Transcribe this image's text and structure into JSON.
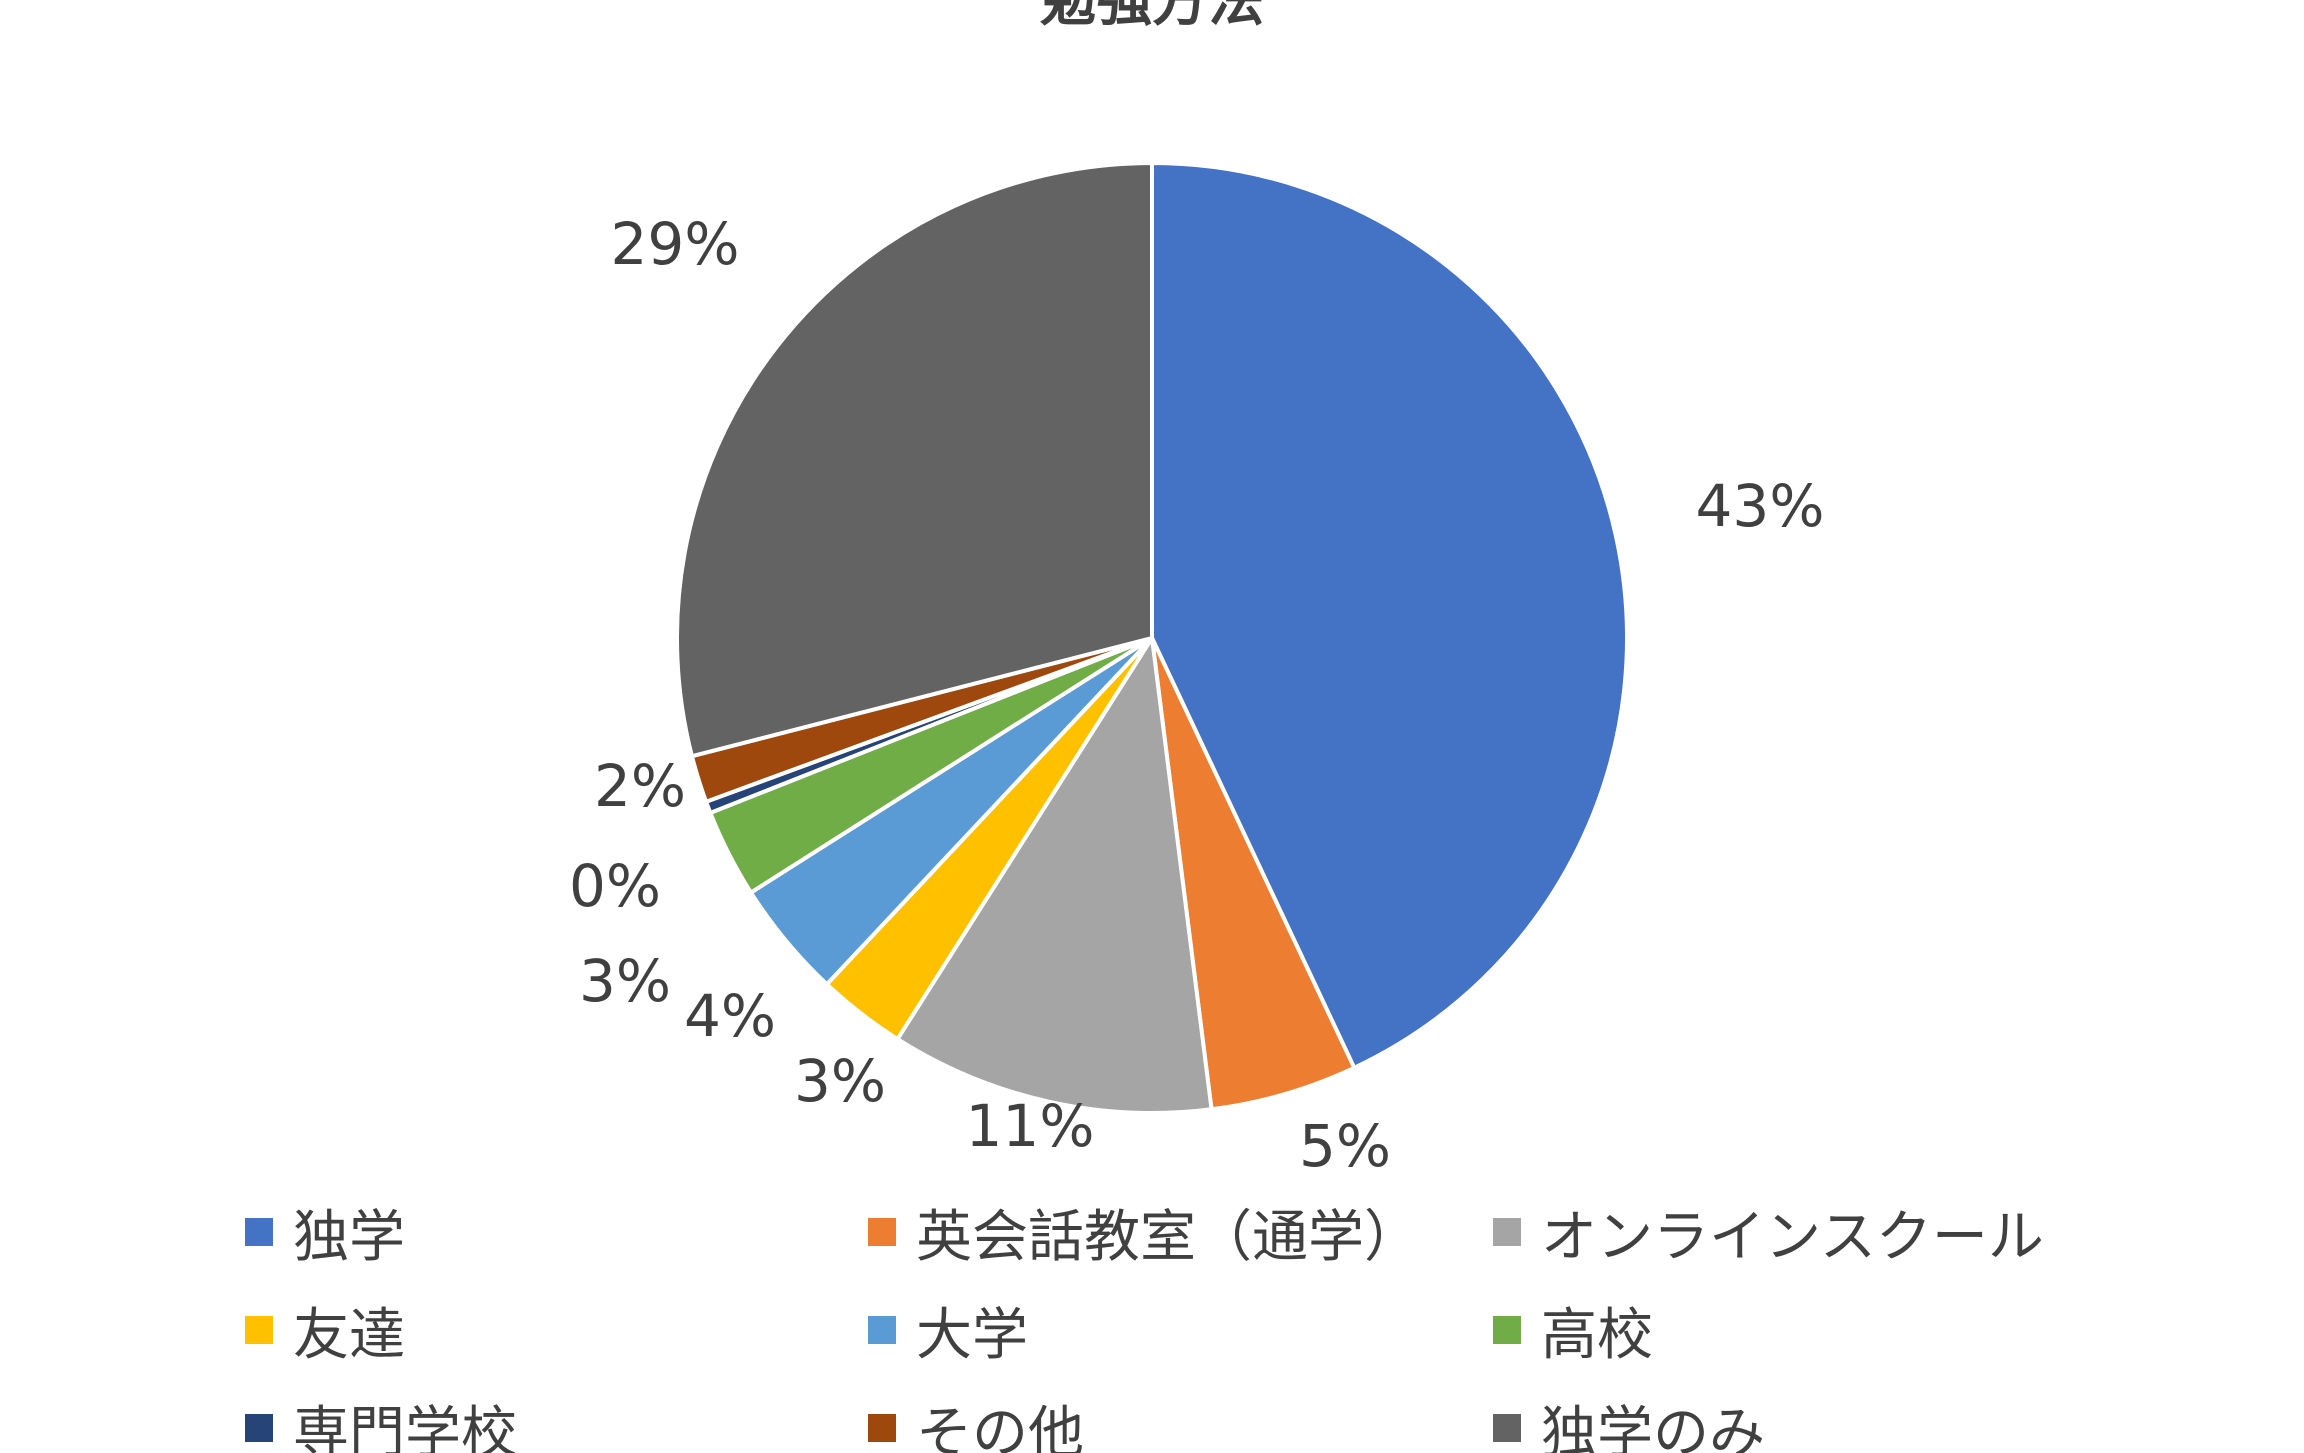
{
  "chart_data": {
    "type": "pie",
    "title": "勉強方法",
    "slices": [
      {
        "name": "独学",
        "value": 43,
        "label": "43%",
        "color": "#4472C4"
      },
      {
        "name": "英会話教室（通学）",
        "value": 5,
        "label": "5%",
        "color": "#ED7D31"
      },
      {
        "name": "オンラインスクール",
        "value": 11,
        "label": "11%",
        "color": "#A5A5A5"
      },
      {
        "name": "友達",
        "value": 3,
        "label": "3%",
        "color": "#FFC000"
      },
      {
        "name": "大学",
        "value": 4,
        "label": "4%",
        "color": "#5B9BD5"
      },
      {
        "name": "高校",
        "value": 3,
        "label": "3%",
        "color": "#70AD47"
      },
      {
        "name": "専門学校",
        "value": 0.4,
        "label": "0%",
        "color": "#264478"
      },
      {
        "name": "その他",
        "value": 1.6,
        "label": "2%",
        "color": "#9E480E"
      },
      {
        "name": "独学のみ",
        "value": 29,
        "label": "29%",
        "color": "#636363"
      }
    ],
    "legend_position": "bottom"
  }
}
